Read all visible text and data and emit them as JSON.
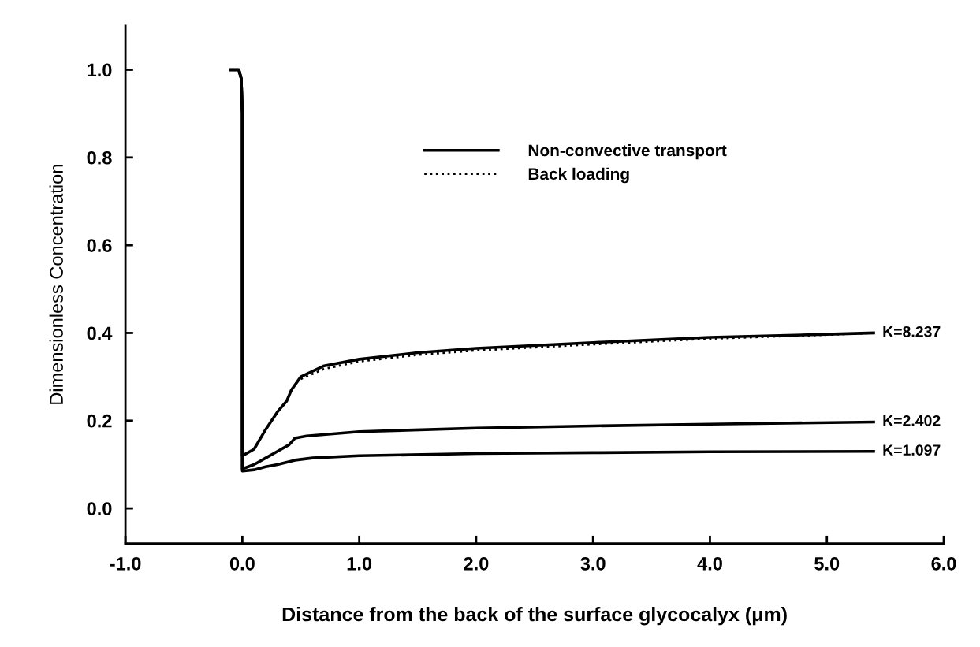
{
  "chart_data": {
    "type": "line",
    "xlabel": "Distance from the back of the surface glycocalyx (μm)",
    "ylabel": "Dimensionless Concentration",
    "xlim": [
      -1.0,
      6.0
    ],
    "ylim": [
      -0.08,
      1.1
    ],
    "xticks": [
      {
        "value": -1,
        "label": "-1.0"
      },
      {
        "value": 0,
        "label": "0.0"
      },
      {
        "value": 1,
        "label": "1.0"
      },
      {
        "value": 2,
        "label": "2.0"
      },
      {
        "value": 3,
        "label": "3.0"
      },
      {
        "value": 4,
        "label": "4.0"
      },
      {
        "value": 5,
        "label": "5.0"
      },
      {
        "value": 6,
        "label": "6.0"
      }
    ],
    "yticks": [
      {
        "value": 0,
        "label": "0.0"
      },
      {
        "value": 0.2,
        "label": "0.2"
      },
      {
        "value": 0.4,
        "label": "0.4"
      },
      {
        "value": 0.6,
        "label": "0.6"
      },
      {
        "value": 0.8,
        "label": "0.8"
      },
      {
        "value": 1,
        "label": "1.0"
      }
    ],
    "grid": false,
    "legend": "top",
    "marker": "none",
    "annotations": [
      "Non-convective transport"
    ],
    "series": [
      {
        "name": "K=8.237",
        "color": "#000000",
        "line_style": "solid",
        "x": [
          -0.1,
          -0.03,
          -0.01,
          0,
          0,
          0.1,
          0.2,
          0.3,
          0.38,
          0.42,
          0.5,
          0.7,
          1.0,
          1.5,
          2.0,
          3.0,
          4.0,
          5.0,
          5.4
        ],
        "values": [
          1.0,
          1.0,
          0.98,
          0.9,
          0.12,
          0.135,
          0.18,
          0.22,
          0.245,
          0.27,
          0.3,
          0.325,
          0.34,
          0.355,
          0.365,
          0.378,
          0.39,
          0.397,
          0.4
        ]
      },
      {
        "name": "Back loading",
        "color": "#000000",
        "line_style": "dotted",
        "x": [
          0.5,
          0.7,
          1.0,
          1.5,
          2.0,
          3.0,
          4.0,
          5.0,
          5.4
        ],
        "values": [
          0.295,
          0.318,
          0.335,
          0.35,
          0.36,
          0.374,
          0.387,
          0.396,
          0.4
        ]
      },
      {
        "name": "K=2.402",
        "color": "#000000",
        "line_style": "solid",
        "x": [
          -0.1,
          -0.03,
          -0.01,
          0,
          0,
          0.1,
          0.2,
          0.3,
          0.4,
          0.45,
          0.55,
          1.0,
          2.0,
          3.0,
          4.0,
          5.4
        ],
        "values": [
          1.0,
          1.0,
          0.98,
          0.9,
          0.09,
          0.1,
          0.115,
          0.13,
          0.145,
          0.16,
          0.165,
          0.175,
          0.183,
          0.188,
          0.192,
          0.197
        ]
      },
      {
        "name": "K=1.097",
        "color": "#000000",
        "line_style": "solid",
        "x": [
          -0.1,
          -0.03,
          -0.01,
          0,
          0,
          0.1,
          0.2,
          0.3,
          0.45,
          0.6,
          1.0,
          2.0,
          3.0,
          4.0,
          5.4
        ],
        "values": [
          1.0,
          1.0,
          0.98,
          0.9,
          0.085,
          0.088,
          0.095,
          0.1,
          0.11,
          0.115,
          0.12,
          0.125,
          0.127,
          0.129,
          0.13
        ]
      }
    ]
  }
}
